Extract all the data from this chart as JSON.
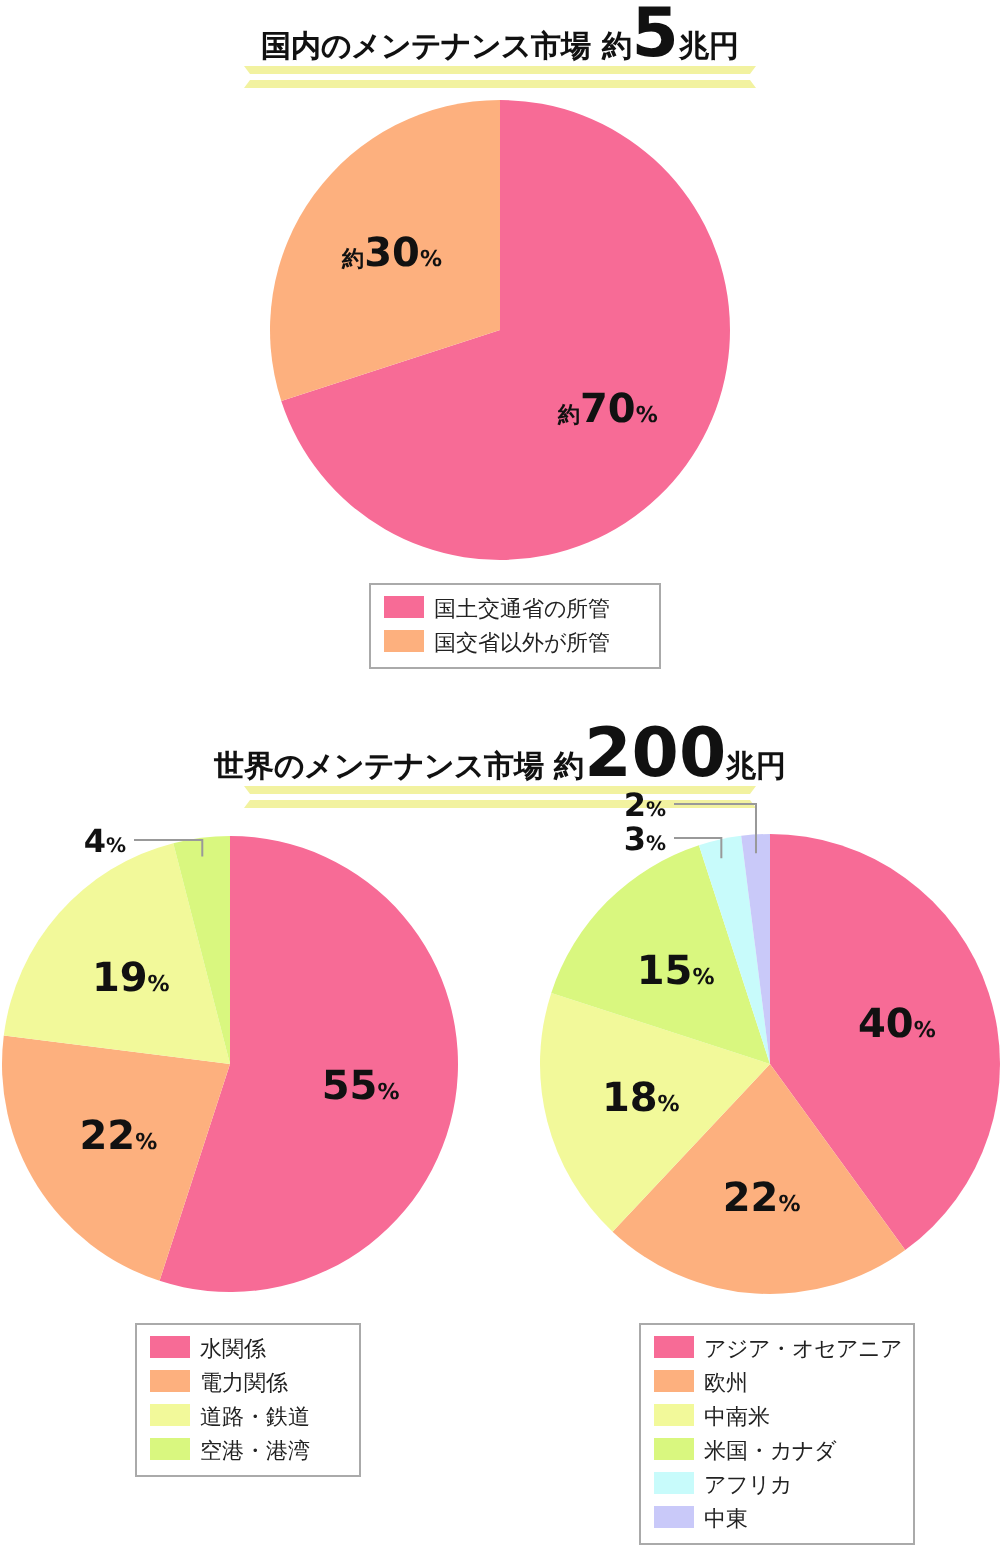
{
  "chart_data": [
    {
      "type": "pie",
      "title": "国内のメンテナンス市場 約5兆円",
      "categories": [
        "国土交通省の所管",
        "国交省以外が所管"
      ],
      "values": [
        70,
        30
      ],
      "colors": [
        "#f76b96",
        "#fdb07e"
      ],
      "value_labels": [
        "約70%",
        "約30%"
      ],
      "legend": "bottom"
    },
    {
      "type": "pie",
      "title": "世界のメンテナンス市場 約200兆円",
      "categories": [
        "水関係",
        "電力関係",
        "道路・鉄道",
        "空港・港湾"
      ],
      "values": [
        55,
        22,
        19,
        4
      ],
      "colors": [
        "#f76b96",
        "#fdb07e",
        "#f2f99a",
        "#d9f77f"
      ],
      "value_labels": [
        "55%",
        "22%",
        "19%",
        "4%"
      ],
      "legend": "bottom"
    },
    {
      "type": "pie",
      "categories": [
        "アジア・オセアニア",
        "欧州",
        "中南米",
        "米国・カナダ",
        "アフリカ",
        "中東"
      ],
      "values": [
        40,
        22,
        18,
        15,
        3,
        2
      ],
      "colors": [
        "#f76b96",
        "#fdb07e",
        "#f2f99a",
        "#d9f77f",
        "#c8fbfb",
        "#c9c9f9"
      ],
      "value_labels": [
        "40%",
        "22%",
        "18%",
        "15%",
        "3%",
        "2%"
      ],
      "legend": "bottom"
    }
  ]
}
